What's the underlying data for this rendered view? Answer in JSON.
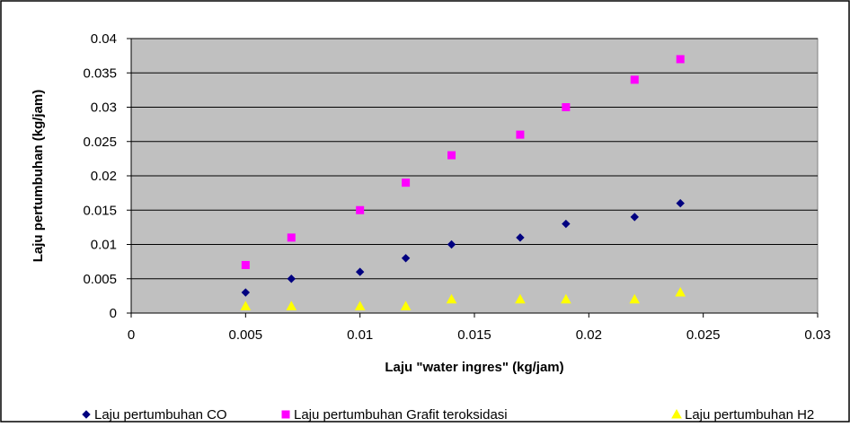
{
  "chart_data": {
    "type": "scatter",
    "title": "",
    "xlabel": "Laju \"water ingres\" (kg/jam)",
    "ylabel": "Laju pertumbuhan (kg/jam)",
    "xlim": [
      0,
      0.03
    ],
    "ylim": [
      0,
      0.04
    ],
    "x_ticks": [
      "0",
      "0.005",
      "0.01",
      "0.015",
      "0.02",
      "0.025",
      "0.03"
    ],
    "y_ticks": [
      "0",
      "0.005",
      "0.01",
      "0.015",
      "0.02",
      "0.025",
      "0.03",
      "0.035",
      "0.04"
    ],
    "grid": "horizontal",
    "plot_background": "#c0c0c0",
    "legend_position": "bottom",
    "series": [
      {
        "name": "Laju pertumbuhan CO",
        "marker": "diamond",
        "color": "#000080",
        "x": [
          0.005,
          0.007,
          0.01,
          0.012,
          0.014,
          0.017,
          0.019,
          0.022,
          0.024
        ],
        "y": [
          0.003,
          0.005,
          0.006,
          0.008,
          0.01,
          0.011,
          0.013,
          0.014,
          0.016
        ]
      },
      {
        "name": "Laju pertumbuhan Grafit teroksidasi",
        "marker": "square",
        "color": "#ff00ff",
        "x": [
          0.005,
          0.007,
          0.01,
          0.012,
          0.014,
          0.017,
          0.019,
          0.022,
          0.024
        ],
        "y": [
          0.007,
          0.011,
          0.015,
          0.019,
          0.023,
          0.026,
          0.03,
          0.034,
          0.037
        ]
      },
      {
        "name": "Laju pertumbuhan H2",
        "marker": "triangle",
        "color": "#ffff00",
        "x": [
          0.005,
          0.007,
          0.01,
          0.012,
          0.014,
          0.017,
          0.019,
          0.022,
          0.024
        ],
        "y": [
          0.001,
          0.001,
          0.001,
          0.001,
          0.002,
          0.002,
          0.002,
          0.002,
          0.003
        ]
      }
    ]
  }
}
